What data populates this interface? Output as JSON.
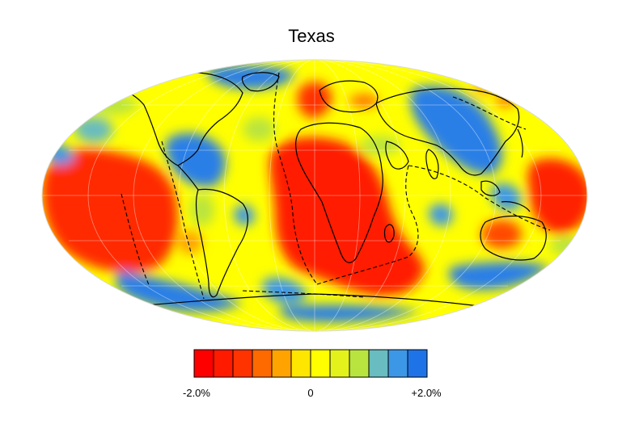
{
  "map": {
    "title": "Texas",
    "projection": "mollweide",
    "graticule": true,
    "coastlines": true,
    "plate_boundaries": "dashed"
  },
  "colorbar": {
    "min_label": "-2.0%",
    "mid_label": "0",
    "max_label": "+2.0%",
    "range": [
      -2.0,
      2.0
    ],
    "unit": "%",
    "colors": [
      "#ff0000",
      "#ff1a00",
      "#ff3300",
      "#ff6a00",
      "#ffa300",
      "#ffe600",
      "#ffff00",
      "#e3f21b",
      "#b9e43f",
      "#69bcc0",
      "#3c97e6",
      "#1e73e6"
    ]
  },
  "colors": {
    "red": "#ff1a00",
    "orange": "#ffa300",
    "yellow": "#ffff00",
    "green": "#b9e43f",
    "blue": "#2a7fe6",
    "coast": "#000000"
  }
}
